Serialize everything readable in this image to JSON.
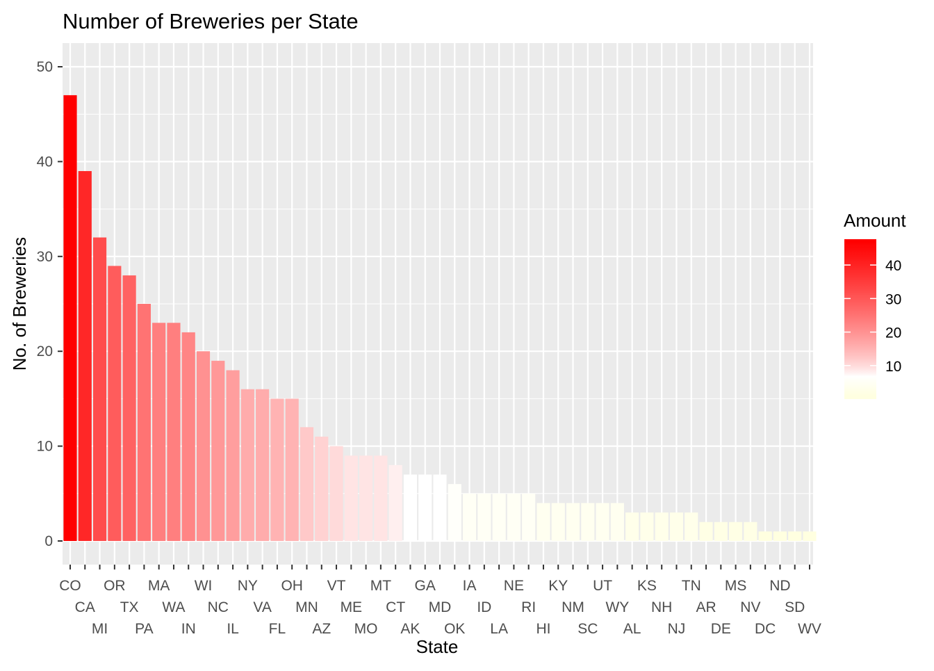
{
  "chart_data": {
    "type": "bar",
    "title": "Number of Breweries per State",
    "xlabel": "State",
    "ylabel": "No. of Breweries",
    "ylim": [
      0,
      52
    ],
    "yticks": [
      0,
      10,
      20,
      30,
      40,
      50
    ],
    "grid": true,
    "categories": [
      "CO",
      "CA",
      "MI",
      "OR",
      "TX",
      "PA",
      "MA",
      "WA",
      "IN",
      "WI",
      "NC",
      "IL",
      "NY",
      "VA",
      "FL",
      "OH",
      "MN",
      "AZ",
      "VT",
      "ME",
      "MO",
      "MT",
      "CT",
      "AK",
      "GA",
      "MD",
      "OK",
      "IA",
      "ID",
      "LA",
      "NE",
      "RI",
      "HI",
      "KY",
      "NM",
      "SC",
      "UT",
      "WY",
      "AL",
      "KS",
      "NH",
      "NJ",
      "TN",
      "AR",
      "DE",
      "MS",
      "NV",
      "DC",
      "ND",
      "SD",
      "WV"
    ],
    "values": [
      47,
      39,
      32,
      29,
      28,
      25,
      23,
      23,
      22,
      20,
      19,
      18,
      16,
      16,
      15,
      15,
      12,
      11,
      10,
      9,
      9,
      9,
      8,
      7,
      7,
      7,
      6,
      5,
      5,
      5,
      5,
      5,
      4,
      4,
      4,
      4,
      4,
      4,
      3,
      3,
      3,
      3,
      3,
      2,
      2,
      2,
      2,
      1,
      1,
      1,
      1
    ],
    "legend": {
      "title": "Amount",
      "placement": "right",
      "ticks": [
        10,
        20,
        30,
        40
      ],
      "low_color": "#FFFFE0",
      "mid_color": "#FFFFFF",
      "high_color": "#FF0000",
      "mid_value": 7,
      "min_value": 1,
      "max_value": 47
    }
  }
}
